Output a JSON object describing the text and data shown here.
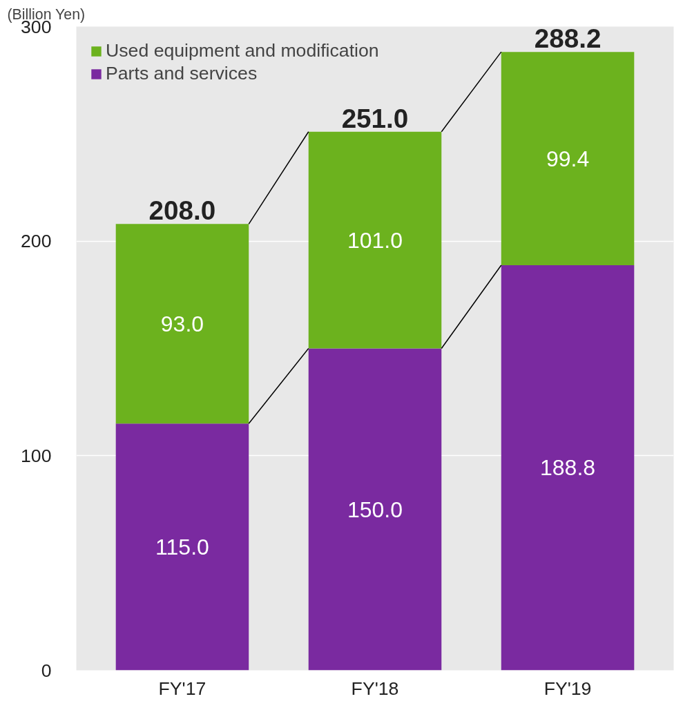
{
  "chart_data": {
    "type": "bar",
    "stacked": true,
    "ylabel": "(Billion Yen)",
    "categories": [
      "FY'17",
      "FY'18",
      "FY'19"
    ],
    "series": [
      {
        "name": "Parts and services",
        "color": "#7a2aa0",
        "values": [
          115.0,
          150.0,
          188.8
        ],
        "value_labels": [
          "115.0",
          "150.0",
          "188.8"
        ]
      },
      {
        "name": "Used equipment and modification",
        "color": "#6cb21e",
        "values": [
          93.0,
          101.0,
          99.4
        ],
        "value_labels": [
          "93.0",
          "101.0",
          "99.4"
        ]
      }
    ],
    "ylim": [
      0,
      300
    ],
    "yticks": [
      0,
      100,
      200,
      300
    ],
    "grid": "y",
    "legend": "top left",
    "totals": [
      "208.0",
      "251.0",
      "288.2"
    ]
  }
}
